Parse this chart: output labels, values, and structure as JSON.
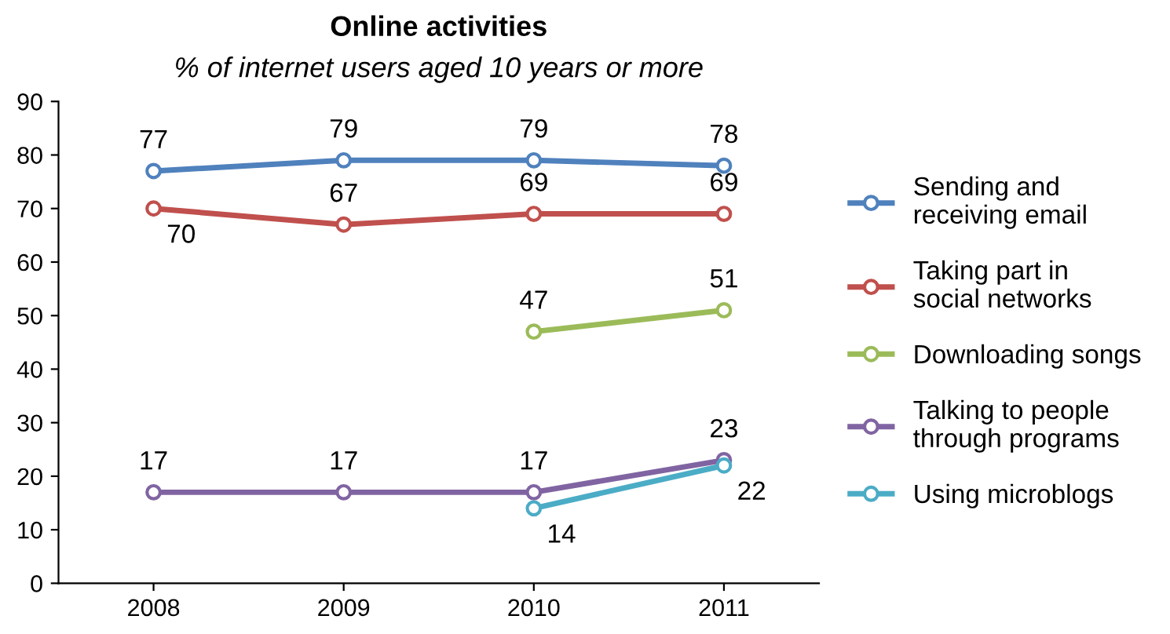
{
  "chart_data": {
    "type": "line",
    "title": "Online activities",
    "subtitle": "% of internet users aged 10 years or more",
    "categories": [
      "2008",
      "2009",
      "2010",
      "2011"
    ],
    "series": [
      {
        "name": "Sending and receiving email",
        "color": "#4f81bd",
        "values": [
          77,
          79,
          79,
          78
        ]
      },
      {
        "name": "Taking part in social networks",
        "color": "#c0504d",
        "values": [
          70,
          67,
          69,
          69
        ]
      },
      {
        "name": "Downloading songs",
        "color": "#9bbb59",
        "values": [
          null,
          null,
          47,
          51
        ]
      },
      {
        "name": "Talking to people through programs",
        "color": "#8064a2",
        "values": [
          17,
          17,
          17,
          23
        ]
      },
      {
        "name": "Using microblogs",
        "color": "#4bacc6",
        "values": [
          null,
          null,
          14,
          22
        ]
      }
    ],
    "ylim": [
      0,
      90
    ],
    "yticks": [
      0,
      10,
      20,
      30,
      40,
      50,
      60,
      70,
      80,
      90
    ],
    "grid": false,
    "legend": "right",
    "marker": "circle",
    "line_style": "solid",
    "data_labels": true
  }
}
